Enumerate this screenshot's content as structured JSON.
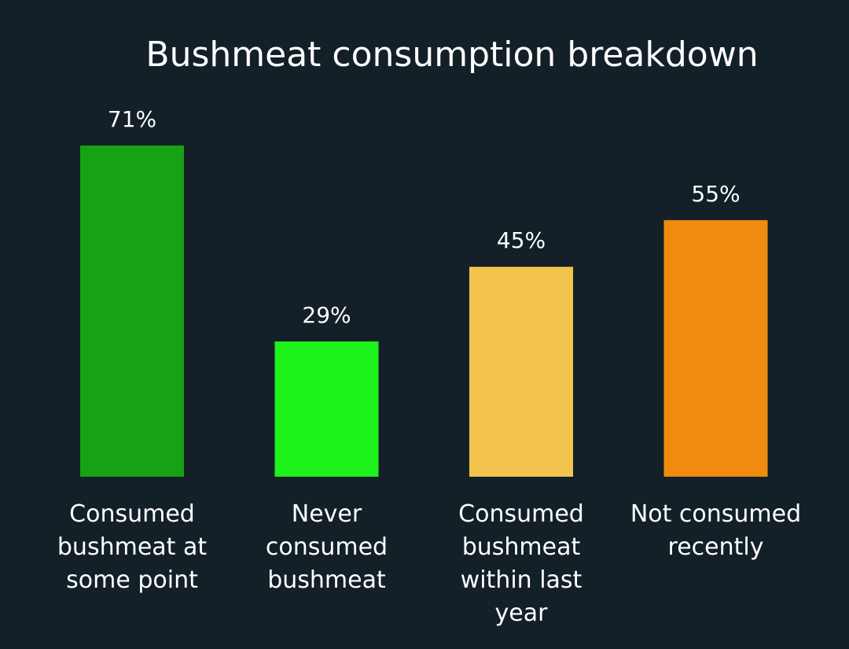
{
  "chart_data": {
    "type": "bar",
    "title": "Bushmeat consumption breakdown",
    "categories": [
      [
        "Consumed",
        "bushmeat at",
        "some point"
      ],
      [
        "Never",
        "consumed",
        "bushmeat"
      ],
      [
        "Consumed",
        "bushmeat",
        "within last",
        "year"
      ],
      [
        "Not consumed",
        "recently"
      ]
    ],
    "values": [
      71,
      29,
      45,
      55
    ],
    "value_labels": [
      "71%",
      "29%",
      "45%",
      "55%"
    ],
    "colors": [
      "#16a214",
      "#1df21b",
      "#f2c44d",
      "#f08b10"
    ],
    "ylim": [
      0,
      71
    ],
    "grid": false,
    "xlabel": "",
    "ylabel": ""
  },
  "colors": {
    "background": "#132027",
    "text": "#ffffff"
  }
}
